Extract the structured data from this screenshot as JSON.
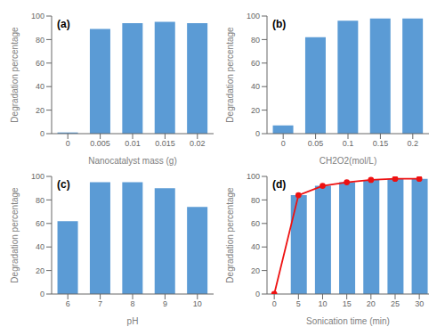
{
  "chart_data": [
    {
      "type": "bar",
      "annotations": [
        "(a)"
      ],
      "categories": [
        "0",
        "0.005",
        "0.01",
        "0.015",
        "0.02"
      ],
      "values": [
        1,
        89,
        94,
        95,
        94
      ],
      "color": "#5B9BD5",
      "x_label": "Nanocatalyst mass (g)",
      "y_label": "Degradation percentage",
      "ylim": [
        0,
        100
      ],
      "yticks": [
        0,
        20,
        40,
        60,
        80,
        100
      ],
      "grid": false
    },
    {
      "type": "bar",
      "annotations": [
        "(b)"
      ],
      "categories": [
        "0",
        "0.05",
        "0.1",
        "0.15",
        "0.2"
      ],
      "values": [
        7,
        82,
        96,
        98,
        98
      ],
      "color": "#5B9BD5",
      "x_label": "CH2O2(mol/L)",
      "y_label": "Degradation percentage",
      "ylim": [
        0,
        100
      ],
      "yticks": [
        0,
        20,
        40,
        60,
        80,
        100
      ],
      "grid": false
    },
    {
      "type": "bar",
      "annotations": [
        "(c)"
      ],
      "categories": [
        "6",
        "7",
        "8",
        "9",
        "10"
      ],
      "values": [
        62,
        95,
        95,
        90,
        74
      ],
      "color": "#5B9BD5",
      "x_label": "pH",
      "y_label": "Degradation percentage",
      "ylim": [
        0,
        100
      ],
      "yticks": [
        0,
        20,
        40,
        60,
        80,
        100
      ],
      "grid": false
    },
    {
      "type": "bar",
      "annotations": [
        "(d)"
      ],
      "series": [
        {
          "type": "bar",
          "color": "#5B9BD5",
          "x": [
            5,
            10,
            15,
            20,
            25,
            30
          ],
          "values": [
            84,
            92,
            95,
            97,
            98,
            98
          ]
        },
        {
          "type": "line",
          "color": "#EE1111",
          "marker": "circle",
          "x": [
            0,
            5,
            10,
            15,
            20,
            25,
            30
          ],
          "values": [
            0,
            84,
            92,
            95,
            97,
            98,
            98
          ]
        }
      ],
      "x_label": "Sonication time (min)",
      "y_label": "Degradation percentage",
      "xlim": [
        -1.5,
        32
      ],
      "xticks": [
        0,
        5,
        10,
        15,
        20,
        25,
        30
      ],
      "ylim": [
        0,
        100
      ],
      "yticks": [
        0,
        20,
        40,
        60,
        80,
        100
      ],
      "grid": false
    }
  ]
}
